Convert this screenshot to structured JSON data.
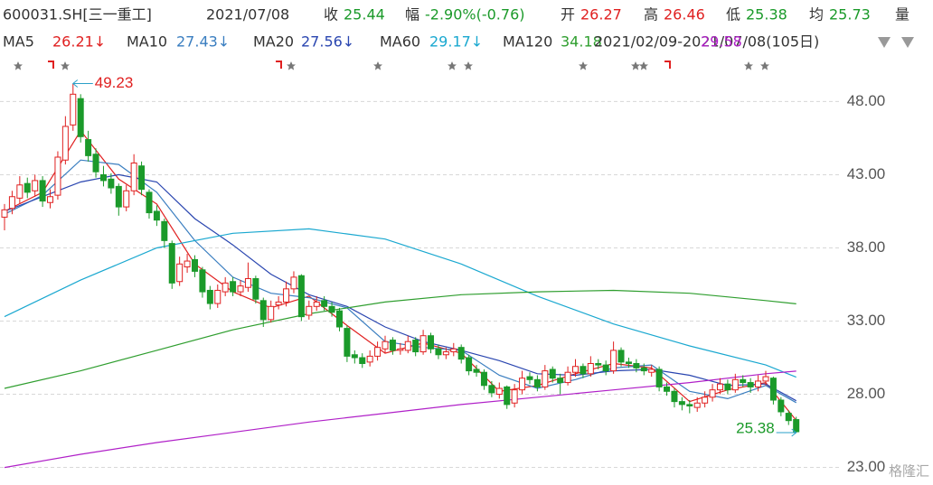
{
  "header": {
    "row1": [
      {
        "text": "600031.SH[三一重工]",
        "color": "#333333"
      },
      {
        "text": "2021/07/08",
        "color": "#333333"
      },
      {
        "text": "收",
        "color": "#333333"
      },
      {
        "text": "25.44",
        "color": "#1b9a2a"
      },
      {
        "text": "幅",
        "color": "#333333"
      },
      {
        "text": "-2.90%(-0.76)",
        "color": "#1b9a2a"
      },
      {
        "text": "开",
        "color": "#333333"
      },
      {
        "text": "26.27",
        "color": "#e02020"
      },
      {
        "text": "高",
        "color": "#333333"
      },
      {
        "text": "26.46",
        "color": "#e02020"
      },
      {
        "text": "低",
        "color": "#333333"
      },
      {
        "text": "25.38",
        "color": "#1b9a2a"
      },
      {
        "text": "均",
        "color": "#333333"
      },
      {
        "text": "25.73",
        "color": "#1b9a2a"
      },
      {
        "text": "量",
        "color": "#333333"
      }
    ],
    "row2": [
      {
        "text": "MA5",
        "color": "#333333"
      },
      {
        "text": "26.21↓",
        "color": "#e02020"
      },
      {
        "text": "MA10",
        "color": "#333333"
      },
      {
        "text": "27.43↓",
        "color": "#3a7ec0"
      },
      {
        "text": "MA20",
        "color": "#333333"
      },
      {
        "text": "27.56↓",
        "color": "#2a46b0"
      },
      {
        "text": "MA60",
        "color": "#333333"
      },
      {
        "text": "29.17↓",
        "color": "#1aa8d0"
      },
      {
        "text": "MA120",
        "color": "#333333"
      },
      {
        "text": "34.18",
        "color": "#2f9e2f"
      },
      {
        "text": "2021/02/09-2021/07/08(105日)",
        "color": "#333333"
      },
      {
        "text": "29.58",
        "color": "#b020c8"
      }
    ],
    "watermark": "格隆汇"
  },
  "chart_data": {
    "type": "candlestick",
    "up_color": "#e02020",
    "down_color": "#1b9a2a",
    "ylim": [
      21.8,
      50.0
    ],
    "yticks": [
      {
        "value": 23,
        "label": "23.00"
      },
      {
        "value": 28,
        "label": "28.00"
      },
      {
        "value": 33,
        "label": "33.00"
      },
      {
        "value": 38,
        "label": "38.00"
      },
      {
        "value": 43,
        "label": "43.00"
      },
      {
        "value": 48,
        "label": "48.00"
      }
    ],
    "grid": true,
    "open": [
      40.1,
      40.7,
      41.4,
      42.4,
      41.9,
      42.6,
      41.1,
      41.6,
      44.0,
      46.4,
      48.2,
      45.4,
      44.4,
      43.0,
      42.7,
      42.2,
      40.8,
      41.9,
      43.6,
      41.8,
      40.5,
      39.8,
      38.3,
      35.7,
      36.7,
      37.2,
      36.5,
      35.1,
      34.2,
      35.0,
      35.7,
      35.0,
      35.3,
      35.9,
      34.4,
      33.1,
      34.1,
      34.3,
      35.2,
      36.1,
      33.4,
      34.0,
      34.4,
      34.0,
      33.7,
      32.5,
      30.7,
      30.5,
      30.2,
      30.6,
      31.1,
      31.7,
      31.0,
      31.0,
      31.7,
      30.9,
      32.0,
      31.1,
      30.7,
      30.9,
      31.2,
      30.5,
      29.7,
      29.5,
      28.6,
      28.0,
      28.5,
      27.4,
      28.3,
      29.2,
      29.0,
      28.5,
      29.7,
      29.1,
      28.8,
      29.5,
      29.9,
      29.4,
      30.1,
      30.0,
      29.6,
      31.0,
      30.2,
      30.1,
      29.8,
      29.5,
      29.7,
      28.5,
      28.2,
      27.5,
      27.3,
      27.1,
      27.4,
      27.8,
      28.3,
      28.7,
      28.3,
      29.0,
      28.8,
      28.5,
      28.9,
      29.1,
      27.6,
      26.7,
      26.27
    ],
    "high": [
      41.0,
      41.9,
      42.9,
      42.8,
      43.0,
      42.9,
      42.0,
      44.6,
      47.0,
      49.23,
      48.5,
      46.0,
      44.8,
      43.6,
      43.1,
      42.4,
      42.3,
      44.4,
      43.9,
      42.0,
      40.9,
      40.0,
      38.5,
      37.4,
      37.6,
      37.5,
      36.7,
      35.4,
      35.5,
      36.0,
      36.0,
      35.8,
      37.0,
      36.1,
      34.6,
      34.4,
      34.7,
      35.7,
      36.4,
      36.2,
      34.4,
      34.7,
      34.7,
      34.3,
      33.9,
      32.7,
      31.0,
      30.8,
      31.0,
      31.6,
      32.0,
      31.9,
      31.5,
      32.0,
      31.9,
      32.4,
      32.2,
      31.4,
      31.2,
      31.5,
      31.4,
      30.7,
      30.0,
      29.7,
      28.9,
      28.8,
      28.6,
      28.7,
      29.6,
      29.5,
      29.3,
      30.0,
      29.9,
      29.4,
      29.9,
      30.4,
      30.1,
      30.6,
      30.4,
      30.3,
      31.6,
      31.2,
      30.5,
      30.4,
      30.1,
      30.0,
      29.9,
      28.8,
      28.4,
      27.8,
      27.6,
      27.8,
      28.2,
      28.7,
      29.1,
      29.0,
      29.4,
      29.3,
      29.1,
      29.3,
      29.6,
      29.2,
      27.8,
      26.9,
      26.46
    ],
    "low": [
      39.2,
      40.3,
      41.0,
      41.4,
      41.5,
      40.8,
      40.7,
      41.3,
      43.7,
      46.0,
      45.2,
      43.9,
      42.8,
      42.2,
      41.7,
      40.2,
      40.5,
      41.6,
      41.6,
      40.0,
      39.5,
      38.0,
      35.2,
      35.4,
      36.3,
      36.0,
      34.6,
      33.8,
      33.9,
      34.7,
      34.7,
      34.7,
      35.0,
      34.2,
      32.6,
      32.9,
      33.8,
      34.0,
      34.9,
      33.0,
      33.1,
      33.7,
      33.7,
      33.3,
      32.3,
      30.2,
      30.1,
      29.8,
      29.9,
      30.3,
      30.8,
      30.7,
      30.7,
      30.8,
      30.6,
      30.7,
      30.8,
      30.4,
      30.4,
      30.6,
      30.1,
      29.3,
      29.2,
      28.3,
      27.8,
      27.7,
      27.0,
      27.1,
      28.0,
      28.7,
      28.2,
      28.3,
      28.8,
      28.0,
      28.6,
      29.2,
      29.1,
      29.2,
      29.7,
      29.3,
      29.4,
      29.9,
      29.8,
      29.5,
      29.3,
      29.2,
      28.2,
      27.9,
      27.1,
      26.9,
      26.7,
      26.8,
      27.1,
      27.5,
      28.0,
      28.0,
      28.1,
      28.5,
      28.1,
      28.2,
      28.6,
      27.3,
      26.5,
      25.9,
      25.38
    ],
    "close": [
      40.6,
      41.5,
      42.3,
      41.8,
      42.6,
      41.2,
      41.5,
      44.2,
      46.3,
      48.5,
      45.6,
      44.3,
      43.2,
      42.6,
      42.1,
      40.8,
      41.9,
      43.8,
      42.0,
      40.4,
      39.9,
      38.5,
      35.6,
      36.9,
      37.1,
      36.4,
      35.0,
      34.2,
      35.1,
      35.6,
      35.0,
      35.4,
      35.9,
      34.5,
      33.1,
      34.0,
      34.3,
      35.2,
      36.0,
      33.3,
      34.0,
      34.3,
      34.0,
      33.6,
      32.6,
      30.6,
      30.5,
      30.1,
      30.6,
      31.2,
      31.6,
      31.0,
      31.1,
      31.6,
      30.9,
      32.0,
      31.1,
      30.7,
      30.9,
      31.1,
      30.4,
      29.6,
      29.5,
      28.6,
      28.1,
      28.4,
      27.3,
      28.3,
      29.1,
      29.0,
      28.5,
      29.6,
      29.1,
      28.8,
      29.5,
      29.9,
      29.4,
      30.1,
      30.0,
      29.6,
      31.0,
      30.2,
      30.1,
      29.8,
      29.6,
      29.7,
      28.5,
      28.2,
      27.5,
      27.3,
      27.2,
      27.4,
      27.8,
      28.3,
      28.7,
      28.3,
      29.0,
      28.8,
      28.5,
      28.9,
      29.2,
      27.6,
      26.8,
      26.2,
      25.44
    ],
    "series": [
      {
        "color": "#e02020",
        "x": [
          0,
          5,
          10,
          15,
          20,
          25,
          30,
          35,
          40,
          45,
          50,
          55,
          60,
          65,
          70,
          75,
          80,
          85,
          90,
          95,
          100,
          104
        ],
        "values": [
          40.5,
          41.8,
          46.0,
          42.7,
          41.0,
          36.9,
          35.0,
          33.9,
          34.7,
          32.7,
          30.8,
          31.5,
          30.8,
          28.2,
          28.6,
          29.4,
          30.1,
          29.8,
          27.5,
          28.3,
          28.8,
          26.21
        ]
      },
      {
        "color": "#3a7ec0",
        "x": [
          0,
          5,
          10,
          15,
          20,
          25,
          30,
          35,
          40,
          45,
          50,
          55,
          60,
          65,
          70,
          75,
          80,
          85,
          90,
          95,
          100,
          104
        ],
        "values": [
          40.3,
          41.6,
          44.0,
          43.7,
          41.8,
          38.5,
          36.0,
          34.9,
          34.6,
          33.9,
          31.6,
          31.2,
          31.0,
          29.3,
          28.4,
          29.0,
          29.8,
          30.0,
          28.2,
          27.7,
          28.6,
          27.43
        ]
      },
      {
        "color": "#2a46b0",
        "x": [
          0,
          5,
          10,
          15,
          20,
          25,
          30,
          35,
          40,
          45,
          50,
          55,
          60,
          65,
          70,
          75,
          80,
          85,
          90,
          95,
          100,
          104
        ],
        "values": [
          40.5,
          41.5,
          42.5,
          43.0,
          42.5,
          40.0,
          38.2,
          36.2,
          34.8,
          34.0,
          32.6,
          31.6,
          31.0,
          30.3,
          29.4,
          29.3,
          29.6,
          29.7,
          29.3,
          28.6,
          28.7,
          27.56
        ]
      },
      {
        "color": "#1aa8d0",
        "x": [
          0,
          10,
          20,
          30,
          40,
          50,
          60,
          70,
          80,
          90,
          100,
          104
        ],
        "values": [
          33.3,
          35.8,
          38.0,
          39.0,
          39.3,
          38.6,
          36.9,
          34.7,
          32.8,
          31.3,
          30.0,
          29.17
        ]
      },
      {
        "color": "#2f9e2f",
        "x": [
          0,
          10,
          20,
          30,
          40,
          50,
          60,
          70,
          80,
          90,
          100,
          104
        ],
        "values": [
          28.4,
          29.6,
          31.0,
          32.4,
          33.5,
          34.3,
          34.8,
          35.0,
          35.1,
          34.9,
          34.4,
          34.18
        ]
      },
      {
        "color": "#b020c8",
        "x": [
          0,
          10,
          20,
          30,
          40,
          50,
          60,
          70,
          80,
          90,
          100,
          104
        ],
        "values": [
          23.0,
          23.9,
          24.7,
          25.4,
          26.1,
          26.7,
          27.3,
          27.8,
          28.3,
          28.8,
          29.4,
          29.58
        ]
      }
    ],
    "annotations": [
      {
        "value": 49.23,
        "x": 9,
        "side": "right"
      },
      {
        "value": 25.38,
        "x": 104,
        "side": "left"
      }
    ]
  }
}
